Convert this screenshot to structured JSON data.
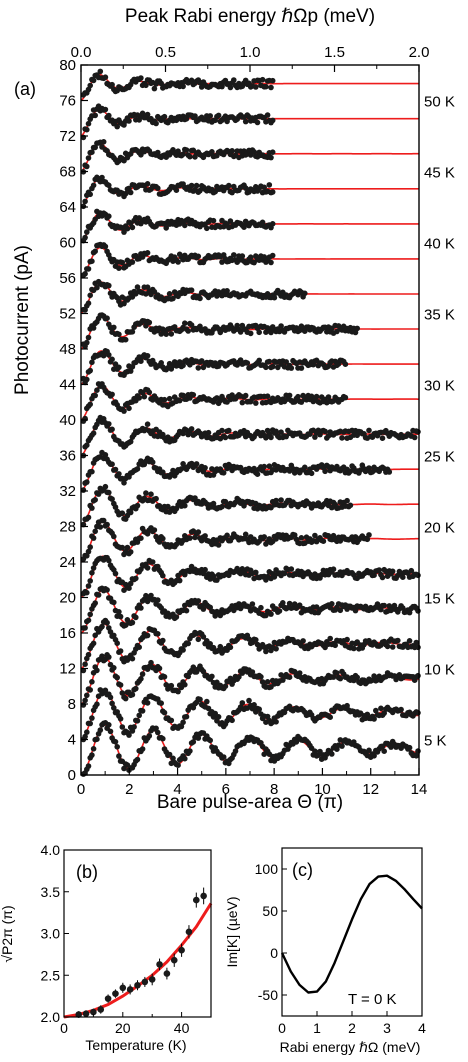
{
  "chart_data": [
    {
      "id": "a",
      "type": "scatter",
      "panel_label": "(a)",
      "xlabel": "Bare pulse-area Θ (π)",
      "ylabel": "Photocurrent (pA)",
      "top_xlabel": "Peak Rabi energy ℏΩp (meV)",
      "xlim": [
        0,
        14
      ],
      "ylim": [
        0,
        80
      ],
      "top_xlim": [
        0,
        2.0
      ],
      "x_ticks": [
        "0",
        "2",
        "4",
        "6",
        "8",
        "10",
        "12",
        "14"
      ],
      "y_ticks": [
        "0",
        "4",
        "8",
        "12",
        "16",
        "20",
        "24",
        "28",
        "32",
        "36",
        "40",
        "44",
        "48",
        "52",
        "56",
        "60",
        "64",
        "68",
        "72",
        "76",
        "80"
      ],
      "top_ticks": [
        "0.0",
        "0.5",
        "1.0",
        "1.5",
        "2.0"
      ],
      "grid": false,
      "series": [
        {
          "name": "5 K",
          "offset": 0,
          "amplitude": 6.0,
          "data_xmax": 14
        },
        {
          "name": "",
          "offset": 4,
          "amplitude": 6.0,
          "data_xmax": 14
        },
        {
          "name": "10 K",
          "offset": 8,
          "amplitude": 5.8,
          "data_xmax": 14
        },
        {
          "name": "",
          "offset": 12,
          "amplitude": 5.6,
          "data_xmax": 14
        },
        {
          "name": "15 K",
          "offset": 16,
          "amplitude": 5.5,
          "data_xmax": 14
        },
        {
          "name": "",
          "offset": 20,
          "amplitude": 5.3,
          "data_xmax": 14
        },
        {
          "name": "20 K",
          "offset": 24,
          "amplitude": 5.2,
          "data_xmax": 12
        },
        {
          "name": "",
          "offset": 28,
          "amplitude": 5.0,
          "data_xmax": 11.2
        },
        {
          "name": "25 K",
          "offset": 32,
          "amplitude": 4.9,
          "data_xmax": 12.8
        },
        {
          "name": "",
          "offset": 36,
          "amplitude": 4.8,
          "data_xmax": 14
        },
        {
          "name": "30 K",
          "offset": 40,
          "amplitude": 4.7,
          "data_xmax": 11
        },
        {
          "name": "",
          "offset": 44,
          "amplitude": 4.6,
          "data_xmax": 11
        },
        {
          "name": "35 K",
          "offset": 48,
          "amplitude": 4.5,
          "data_xmax": 11.5
        },
        {
          "name": "",
          "offset": 52,
          "amplitude": 4.4,
          "data_xmax": 9.3
        },
        {
          "name": "40 K",
          "offset": 56,
          "amplitude": 4.3,
          "data_xmax": 8.0
        },
        {
          "name": "",
          "offset": 60,
          "amplitude": 4.2,
          "data_xmax": 8.0
        },
        {
          "name": "45 K",
          "offset": 64,
          "amplitude": 4.1,
          "data_xmax": 8.0
        },
        {
          "name": "",
          "offset": 68,
          "amplitude": 4.0,
          "data_xmax": 8.0
        },
        {
          "name": "50 K",
          "offset": 72,
          "amplitude": 3.9,
          "data_xmax": 8.0
        },
        {
          "name": "",
          "offset": 76,
          "amplitude": 3.8,
          "data_xmax": 8.0
        }
      ],
      "temperature_labels": [
        "5 K",
        "10 K",
        "15 K",
        "20 K",
        "25 K",
        "30 K",
        "35 K",
        "40 K",
        "45 K",
        "50 K"
      ],
      "colors": {
        "points": "#1a1a1a",
        "fit": "#ee1c1c"
      }
    },
    {
      "id": "b",
      "type": "scatter",
      "panel_label": "(b)",
      "xlabel": "Temperature (K)",
      "ylabel": "√P2π (π)",
      "xlim": [
        0,
        50
      ],
      "ylim": [
        2.0,
        4.0
      ],
      "x_ticks": [
        "0",
        "20",
        "40"
      ],
      "y_ticks": [
        "2.0",
        "2.5",
        "3.0",
        "3.5",
        "4.0"
      ],
      "x": [
        5,
        7.5,
        10,
        12.5,
        15,
        17.5,
        20,
        22.5,
        25,
        27.5,
        30,
        32.5,
        35,
        37.5,
        40,
        42.5,
        45,
        47.5
      ],
      "y": [
        2.03,
        2.04,
        2.06,
        2.09,
        2.22,
        2.28,
        2.35,
        2.33,
        2.38,
        2.42,
        2.45,
        2.63,
        2.52,
        2.68,
        2.8,
        3.02,
        3.4,
        3.45
      ],
      "yerr": [
        0.04,
        0.04,
        0.04,
        0.05,
        0.05,
        0.05,
        0.06,
        0.06,
        0.06,
        0.06,
        0.07,
        0.07,
        0.07,
        0.08,
        0.08,
        0.08,
        0.09,
        0.1
      ],
      "fit": {
        "x": [
          0,
          5,
          10,
          15,
          20,
          25,
          30,
          35,
          40,
          45,
          50
        ],
        "y": [
          2.0,
          2.03,
          2.08,
          2.15,
          2.25,
          2.37,
          2.5,
          2.66,
          2.86,
          3.08,
          3.36
        ]
      },
      "grid": false,
      "colors": {
        "points": "#1a1a1a",
        "fit": "#ee1c1c"
      }
    },
    {
      "id": "c",
      "type": "line",
      "panel_label": "(c)",
      "xlabel": "Rabi energy ℏΩ (meV)",
      "ylabel": "Im[K] (µeV)",
      "annotation": "T = 0 K",
      "xlim": [
        0,
        4
      ],
      "ylim": [
        -75,
        125
      ],
      "x_ticks": [
        "0",
        "1",
        "2",
        "3",
        "4"
      ],
      "y_ticks": [
        "-50",
        "0",
        "50",
        "100"
      ],
      "x": [
        0,
        0.25,
        0.5,
        0.75,
        1.0,
        1.25,
        1.5,
        1.75,
        2.0,
        2.25,
        2.5,
        2.75,
        3.0,
        3.25,
        3.5,
        3.75,
        4.0
      ],
      "y": [
        0,
        -22,
        -38,
        -47,
        -46,
        -34,
        -12,
        14,
        40,
        64,
        82,
        91,
        92,
        86,
        76,
        64,
        53
      ],
      "grid": false,
      "colors": {
        "line": "#000000"
      }
    }
  ]
}
